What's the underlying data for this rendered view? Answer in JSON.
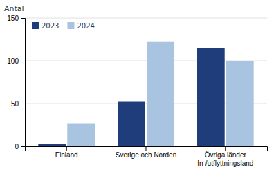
{
  "chart_data": {
    "type": "bar",
    "ylabel": "Antal",
    "categories": [
      "Finland",
      "Sverige och Norden",
      "Övriga länder\nIn-/utflyttningsland"
    ],
    "series": [
      {
        "name": "2023",
        "color": "#1f3d7a",
        "values": [
          3,
          52,
          115
        ]
      },
      {
        "name": "2024",
        "color": "#a8c4e0",
        "values": [
          27,
          122,
          100
        ]
      }
    ],
    "ylim": [
      0,
      150
    ],
    "yticks": [
      0,
      50,
      100,
      150
    ],
    "grid": true,
    "legend": "upper left"
  }
}
